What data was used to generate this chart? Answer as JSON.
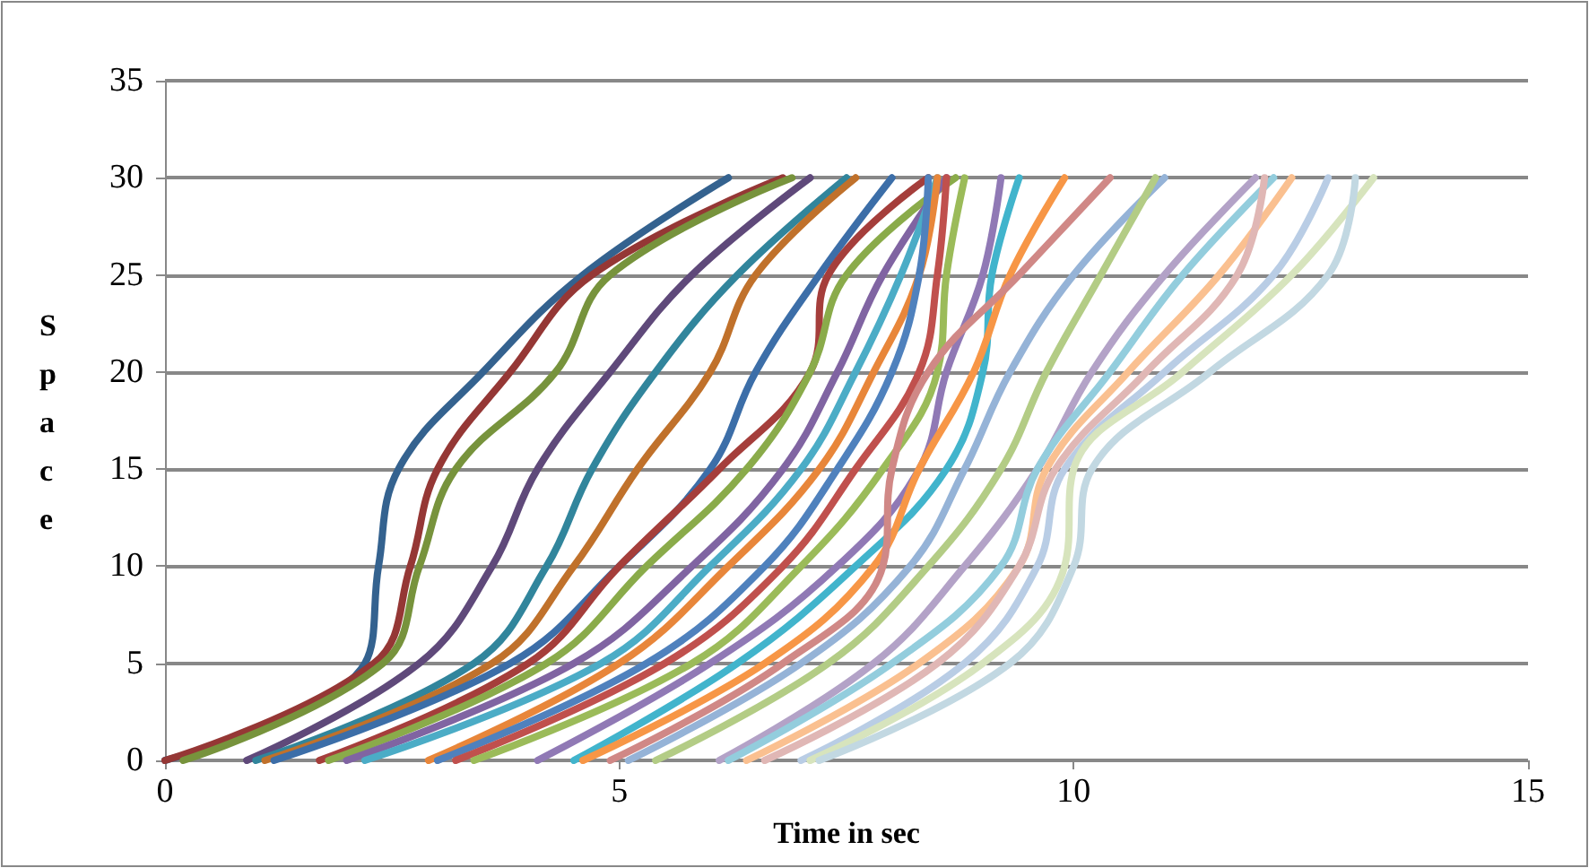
{
  "chart_data": {
    "type": "line",
    "xlabel": "Time in sec",
    "ylabel": "Space",
    "xlim": [
      0,
      15
    ],
    "xticks": [
      0,
      5,
      10,
      15
    ],
    "ylim": [
      0,
      35
    ],
    "yticks": [
      0,
      5,
      10,
      15,
      20,
      25,
      30,
      35
    ],
    "grid": "y",
    "marker": "none",
    "line_style": "solid",
    "series": [
      {
        "color": "#34628f",
        "x": [
          0,
          2.2,
          2.35,
          2.57,
          3.5,
          4.6,
          6.2
        ],
        "values": [
          0,
          5,
          10,
          15,
          20,
          25,
          30
        ]
      },
      {
        "color": "#953735",
        "x": [
          0,
          2.3,
          2.7,
          3.0,
          3.8,
          4.7,
          6.8
        ],
        "values": [
          0,
          5,
          10,
          15,
          20,
          25,
          30
        ]
      },
      {
        "color": "#77933c",
        "x": [
          0.2,
          2.4,
          2.8,
          3.2,
          4.3,
          4.9,
          6.9
        ],
        "values": [
          0,
          5,
          10,
          15,
          20,
          25,
          30
        ]
      },
      {
        "color": "#5f497a",
        "x": [
          0.9,
          2.8,
          3.6,
          4.1,
          4.9,
          5.8,
          7.1
        ],
        "values": [
          0,
          5,
          10,
          15,
          20,
          25,
          30
        ]
      },
      {
        "color": "#31859c",
        "x": [
          1.0,
          3.4,
          4.2,
          4.7,
          5.4,
          6.3,
          7.5
        ],
        "values": [
          0,
          5,
          10,
          15,
          20,
          25,
          30
        ]
      },
      {
        "color": "#c0712b",
        "x": [
          1.1,
          3.6,
          4.5,
          5.2,
          6.0,
          6.5,
          7.6
        ],
        "values": [
          0,
          5,
          10,
          15,
          20,
          25,
          30
        ]
      },
      {
        "color": "#3c6ea8",
        "x": [
          1.2,
          3.8,
          5.0,
          6.0,
          6.5,
          7.2,
          8.0
        ],
        "values": [
          0,
          5,
          10,
          15,
          20,
          25,
          30
        ]
      },
      {
        "color": "#a53e3b",
        "x": [
          1.7,
          4.0,
          5.0,
          6.1,
          7.1,
          7.3,
          8.4
        ],
        "values": [
          0,
          5,
          10,
          15,
          20,
          25,
          30
        ]
      },
      {
        "color": "#8aab4a",
        "x": [
          1.8,
          4.2,
          5.3,
          6.4,
          7.1,
          7.5,
          8.7
        ],
        "values": [
          0,
          5,
          10,
          15,
          20,
          25,
          30
        ]
      },
      {
        "color": "#8064a2",
        "x": [
          2.0,
          4.5,
          5.8,
          6.8,
          7.4,
          7.9,
          8.6
        ],
        "values": [
          0,
          5,
          10,
          15,
          20,
          25,
          30
        ]
      },
      {
        "color": "#4bacc6",
        "x": [
          2.2,
          4.8,
          6.0,
          7.0,
          7.6,
          8.1,
          8.5
        ],
        "values": [
          0,
          5,
          10,
          15,
          20,
          25,
          30
        ]
      },
      {
        "color": "#e8863a",
        "x": [
          2.9,
          5.0,
          6.2,
          7.2,
          7.8,
          8.3,
          8.5
        ],
        "values": [
          0,
          5,
          10,
          15,
          20,
          25,
          30
        ]
      },
      {
        "color": "#4f81bd",
        "x": [
          3.0,
          5.3,
          6.6,
          7.4,
          8.0,
          8.3,
          8.4
        ],
        "values": [
          0,
          5,
          10,
          15,
          20,
          25,
          30
        ]
      },
      {
        "color": "#c0504d",
        "x": [
          3.2,
          5.5,
          6.8,
          7.6,
          8.3,
          8.5,
          8.6
        ],
        "values": [
          0,
          5,
          10,
          15,
          20,
          25,
          30
        ]
      },
      {
        "color": "#9bbb59",
        "x": [
          3.4,
          5.8,
          7.0,
          7.9,
          8.5,
          8.6,
          8.8
        ],
        "values": [
          0,
          5,
          10,
          15,
          20,
          25,
          30
        ]
      },
      {
        "color": "#9079b5",
        "x": [
          4.1,
          6.0,
          7.4,
          8.3,
          8.6,
          9.0,
          9.2
        ],
        "values": [
          0,
          5,
          10,
          15,
          20,
          25,
          30
        ]
      },
      {
        "color": "#41b4cc",
        "x": [
          4.5,
          6.3,
          7.6,
          8.6,
          9.0,
          9.1,
          9.4
        ],
        "values": [
          0,
          5,
          10,
          15,
          20,
          25,
          30
        ]
      },
      {
        "color": "#f79646",
        "x": [
          4.6,
          6.6,
          7.8,
          8.3,
          8.9,
          9.3,
          9.9
        ],
        "values": [
          0,
          5,
          10,
          15,
          20,
          25,
          30
        ]
      },
      {
        "color": "#d08886",
        "x": [
          4.9,
          6.8,
          7.9,
          8.0,
          8.4,
          9.4,
          10.4
        ],
        "values": [
          0,
          5,
          10,
          15,
          20,
          25,
          30
        ]
      },
      {
        "color": "#95b3d7",
        "x": [
          5.1,
          7.0,
          8.2,
          8.8,
          9.3,
          10.0,
          11.0
        ],
        "values": [
          0,
          5,
          10,
          15,
          20,
          25,
          30
        ]
      },
      {
        "color": "#b3cc85",
        "x": [
          5.4,
          7.3,
          8.4,
          9.2,
          9.7,
          10.3,
          10.9
        ],
        "values": [
          0,
          5,
          10,
          15,
          20,
          25,
          30
        ]
      },
      {
        "color": "#b3a2c7",
        "x": [
          6.1,
          7.8,
          8.8,
          9.6,
          10.2,
          11.0,
          12.0
        ],
        "values": [
          0,
          5,
          10,
          15,
          20,
          25,
          30
        ]
      },
      {
        "color": "#93cddd",
        "x": [
          6.2,
          8.0,
          9.2,
          9.6,
          10.4,
          11.2,
          12.2
        ],
        "values": [
          0,
          5,
          10,
          15,
          20,
          25,
          30
        ]
      },
      {
        "color": "#fac090",
        "x": [
          6.4,
          8.3,
          9.4,
          9.7,
          10.6,
          11.6,
          12.4
        ],
        "values": [
          0,
          5,
          10,
          15,
          20,
          25,
          30
        ]
      },
      {
        "color": "#e0b7b5",
        "x": [
          6.6,
          8.5,
          9.4,
          9.8,
          10.8,
          11.8,
          12.1
        ],
        "values": [
          0,
          5,
          10,
          15,
          20,
          25,
          30
        ]
      },
      {
        "color": "#b9cde5",
        "x": [
          7.0,
          8.8,
          9.6,
          9.9,
          11.0,
          12.2,
          12.8
        ],
        "values": [
          0,
          5,
          10,
          15,
          20,
          25,
          30
        ]
      },
      {
        "color": "#d7e4bd",
        "x": [
          7.1,
          9.0,
          9.9,
          10.0,
          11.2,
          12.4,
          13.3
        ],
        "values": [
          0,
          5,
          10,
          15,
          20,
          25,
          30
        ]
      },
      {
        "color": "#c2d8e2",
        "x": [
          7.2,
          9.3,
          10.0,
          10.2,
          11.5,
          12.8,
          13.1
        ],
        "values": [
          0,
          5,
          10,
          15,
          20,
          25,
          30
        ]
      }
    ]
  }
}
